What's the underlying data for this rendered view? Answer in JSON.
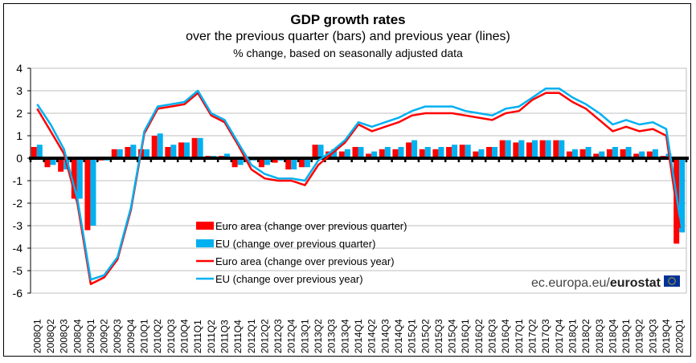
{
  "chart_data": {
    "type": "bar",
    "title": "GDP growth rates",
    "subtitle": "over the previous quarter (bars) and previous year (lines)",
    "subtitle2": "% change, based on seasonally adjusted data",
    "xlabel": "",
    "ylabel": "",
    "ylim": [
      -6,
      4
    ],
    "yticks": [
      4,
      3,
      2,
      1,
      0,
      -1,
      -2,
      -3,
      -4,
      -5,
      -6
    ],
    "grid": true,
    "legend_position": "bottom-center",
    "categories": [
      "2008Q1",
      "2008Q2",
      "2008Q3",
      "2008Q4",
      "2009Q1",
      "2009Q2",
      "2009Q3",
      "2009Q4",
      "2010Q1",
      "2010Q2",
      "2010Q3",
      "2010Q4",
      "2011Q1",
      "2011Q2",
      "2011Q3",
      "2011Q4",
      "2012Q1",
      "2012Q2",
      "2012Q3",
      "2012Q4",
      "2013Q1",
      "2013Q2",
      "2013Q3",
      "2013Q4",
      "2014Q1",
      "2014Q2",
      "2014Q3",
      "2014Q4",
      "2015Q1",
      "2015Q2",
      "2015Q3",
      "2015Q4",
      "2016Q1",
      "2016Q2",
      "2016Q3",
      "2016Q4",
      "2017Q1",
      "2017Q2",
      "2017Q3",
      "2017Q4",
      "2018Q1",
      "2018Q2",
      "2018Q3",
      "2018Q4",
      "2019Q1",
      "2019Q2",
      "2019Q3",
      "2019Q4",
      "2020Q1"
    ],
    "series": [
      {
        "name": "Euro area (change over previous quarter)",
        "type": "bar",
        "color": "#ff0000",
        "values": [
          0.5,
          -0.4,
          -0.6,
          -1.8,
          -3.2,
          -0.1,
          0.4,
          0.5,
          0.4,
          1.0,
          0.5,
          0.7,
          0.9,
          0.1,
          0.1,
          -0.4,
          -0.1,
          -0.4,
          -0.2,
          -0.5,
          -0.4,
          0.6,
          0.3,
          0.3,
          0.5,
          0.2,
          0.4,
          0.4,
          0.7,
          0.4,
          0.4,
          0.5,
          0.6,
          0.3,
          0.5,
          0.8,
          0.7,
          0.7,
          0.8,
          0.8,
          0.3,
          0.4,
          0.2,
          0.4,
          0.4,
          0.2,
          0.3,
          0.1,
          -3.8
        ]
      },
      {
        "name": "EU (change over previous quarter)",
        "type": "bar",
        "color": "#00b0f0",
        "values": [
          0.6,
          -0.3,
          -0.5,
          -1.8,
          -3.0,
          -0.1,
          0.4,
          0.6,
          0.4,
          1.1,
          0.6,
          0.7,
          0.9,
          0.1,
          0.2,
          -0.3,
          -0.1,
          -0.3,
          -0.1,
          -0.5,
          -0.4,
          0.6,
          0.4,
          0.4,
          0.5,
          0.3,
          0.5,
          0.5,
          0.8,
          0.5,
          0.5,
          0.6,
          0.6,
          0.4,
          0.5,
          0.8,
          0.8,
          0.8,
          0.8,
          0.8,
          0.4,
          0.5,
          0.3,
          0.5,
          0.5,
          0.3,
          0.4,
          0.2,
          -3.3
        ]
      },
      {
        "name": "Euro area (change over previous year)",
        "type": "line",
        "color": "#ff0000",
        "values": [
          2.2,
          1.2,
          0.2,
          -2.0,
          -5.6,
          -5.3,
          -4.5,
          -2.3,
          1.1,
          2.2,
          2.3,
          2.4,
          2.9,
          1.9,
          1.6,
          0.6,
          -0.5,
          -0.9,
          -1.0,
          -1.0,
          -1.2,
          -0.3,
          0.2,
          0.7,
          1.5,
          1.2,
          1.4,
          1.6,
          1.9,
          2.0,
          2.0,
          2.0,
          1.9,
          1.8,
          1.7,
          2.0,
          2.1,
          2.6,
          2.9,
          2.9,
          2.5,
          2.2,
          1.7,
          1.2,
          1.4,
          1.2,
          1.3,
          1.0,
          -3.1
        ]
      },
      {
        "name": "EU (change over previous year)",
        "type": "line",
        "color": "#00b0f0",
        "values": [
          2.4,
          1.5,
          0.4,
          -1.8,
          -5.4,
          -5.2,
          -4.4,
          -2.2,
          1.2,
          2.3,
          2.4,
          2.5,
          3.0,
          2.0,
          1.7,
          0.7,
          -0.3,
          -0.7,
          -0.9,
          -0.9,
          -1.0,
          -0.1,
          0.3,
          0.8,
          1.6,
          1.4,
          1.6,
          1.8,
          2.1,
          2.3,
          2.3,
          2.3,
          2.1,
          2.0,
          1.9,
          2.2,
          2.3,
          2.7,
          3.1,
          3.1,
          2.7,
          2.4,
          2.0,
          1.5,
          1.7,
          1.5,
          1.6,
          1.3,
          -2.6
        ]
      }
    ]
  },
  "source": {
    "prefix": "ec.europa.eu/",
    "brand": "eurostat",
    "flag_color": "#003399",
    "star_color": "#ffcc00"
  }
}
